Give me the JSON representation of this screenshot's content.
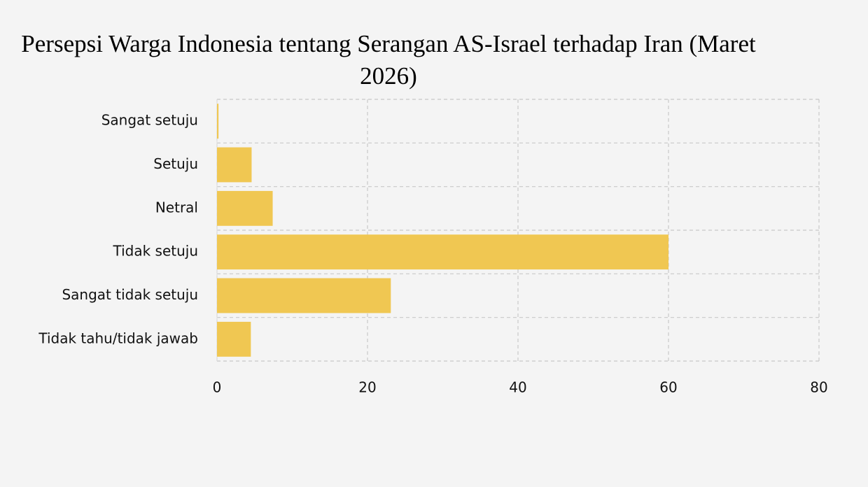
{
  "chart_data": {
    "type": "bar",
    "orientation": "horizontal",
    "title": "Persepsi Warga Indonesia tentang Serangan AS-Israel terhadap Iran (Maret 2026)",
    "categories": [
      "Sangat setuju",
      "Setuju",
      "Netral",
      "Tidak setuju",
      "Sangat tidak setuju",
      "Tidak tahu/tidak jawab"
    ],
    "values": [
      0.2,
      4.6,
      7.4,
      60,
      23.1,
      4.5
    ],
    "color": "#f0c752",
    "xlim": [
      0,
      80
    ],
    "xticks": [
      0,
      20,
      40,
      60,
      80
    ],
    "grid": true
  }
}
